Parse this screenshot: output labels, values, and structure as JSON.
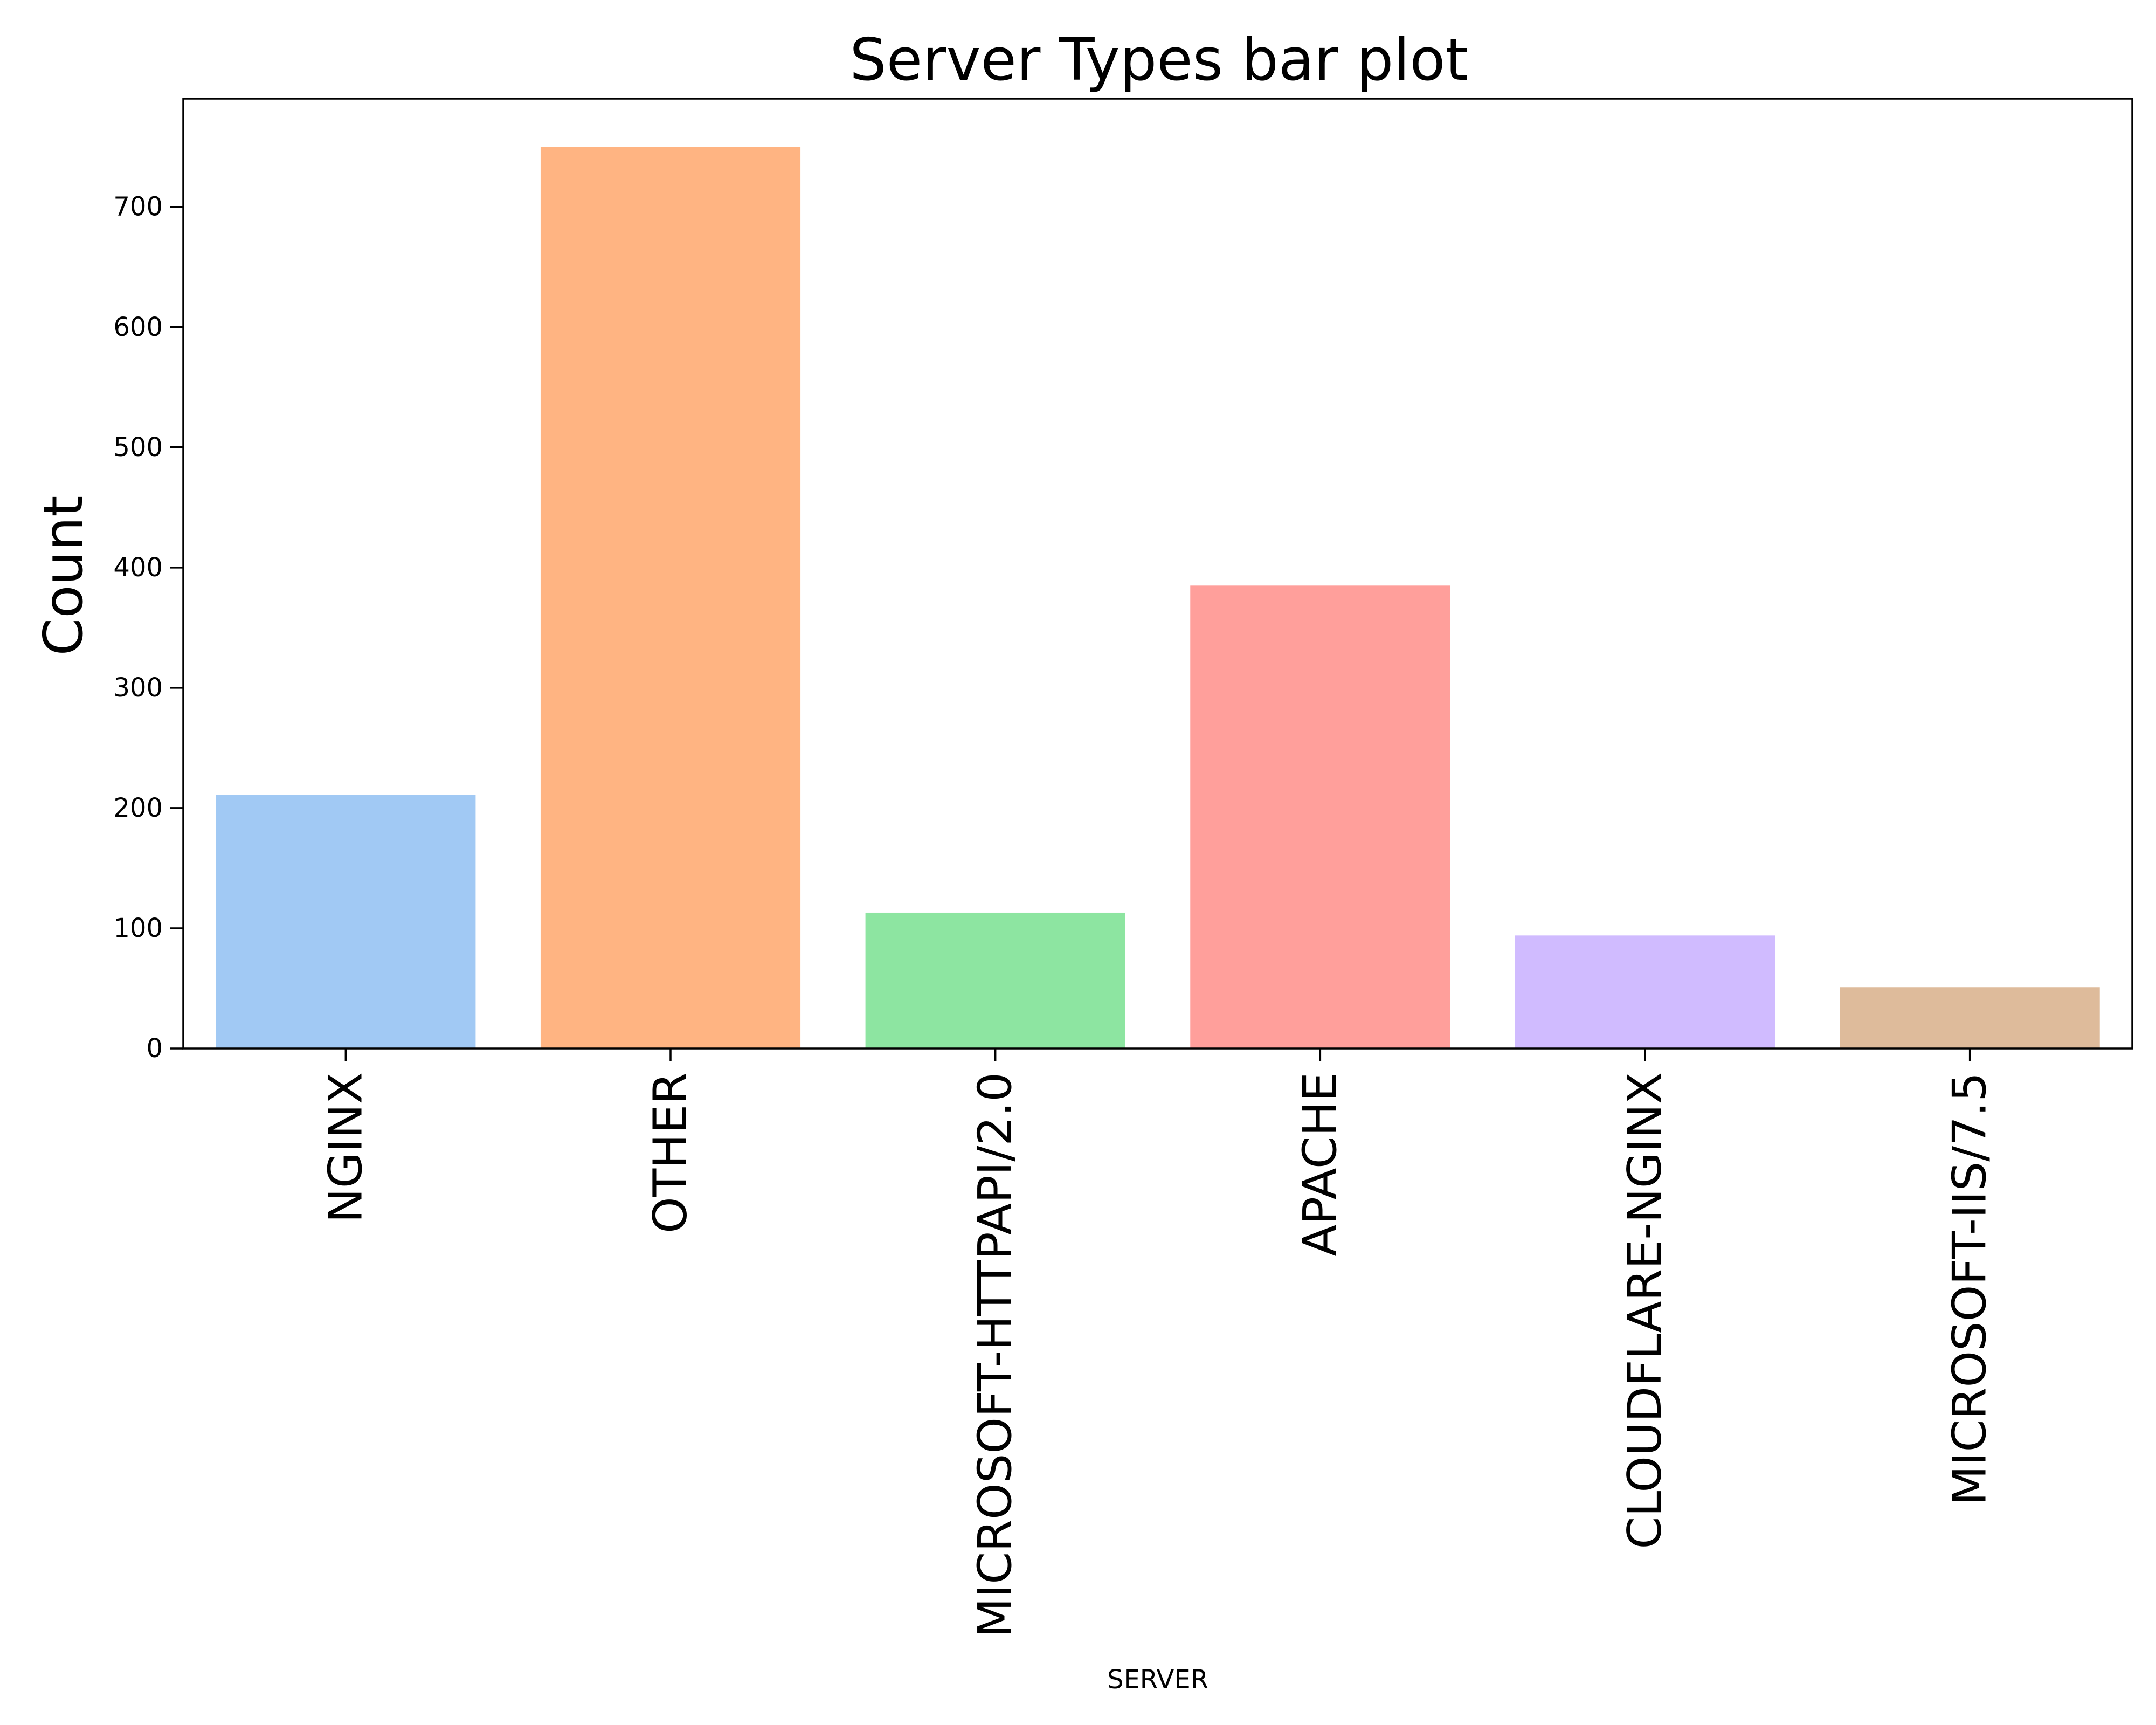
{
  "chart_data": {
    "type": "bar",
    "title": "Server Types bar plot",
    "xlabel": "SERVER",
    "ylabel": "Count",
    "categories": [
      "NGINX",
      "OTHER",
      "MICROSOFT-HTTPAPI/2.0",
      "APACHE",
      "CLOUDFLARE-NGINX",
      "MICROSOFT-IIS/7.5"
    ],
    "values": [
      211,
      750,
      113,
      385,
      94,
      51
    ],
    "colors": [
      "#a1c9f4",
      "#ffb482",
      "#8de5a1",
      "#ff9f9b",
      "#d0bbff",
      "#debb9b"
    ],
    "ylim": [
      0,
      790
    ],
    "yticks": [
      0,
      100,
      200,
      300,
      400,
      500,
      600,
      700
    ],
    "grid": false,
    "legend": false
  }
}
